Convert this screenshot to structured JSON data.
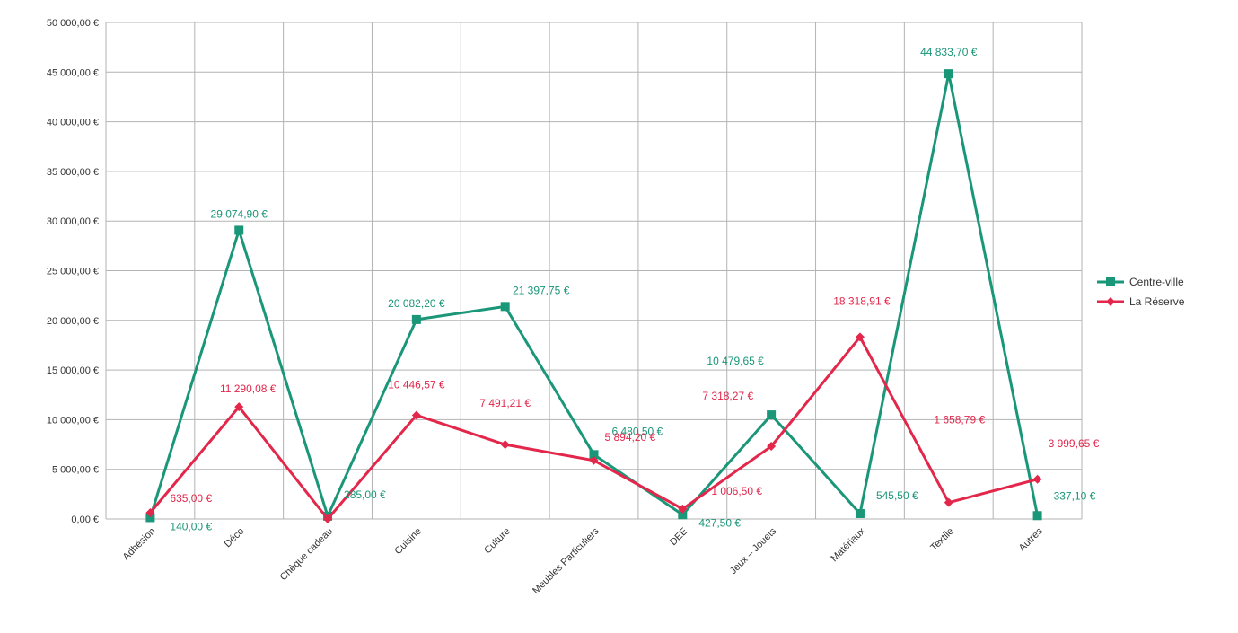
{
  "chart_data": {
    "type": "line",
    "title": "",
    "xlabel": "",
    "ylabel": "",
    "ylim": [
      0,
      50000
    ],
    "y_ticks": [
      "0,00 €",
      "5 000,00 €",
      "10 000,00 €",
      "15 000,00 €",
      "20 000,00 €",
      "25 000,00 €",
      "30 000,00 €",
      "35 000,00 €",
      "40 000,00 €",
      "45 000,00 €",
      "50 000,00 €"
    ],
    "grid": true,
    "legend": "right",
    "categories": [
      "Adhésion",
      "Déco",
      "Chèque cadeau",
      "Cuisine",
      "Culture",
      "Meubles Particuliers",
      "DEE",
      "Jeux – Jouets",
      "Matériaux",
      "Textile",
      "Autres"
    ],
    "series": [
      {
        "name": "Centre-ville",
        "color": "#1a9678",
        "marker": "square",
        "values": [
          140.0,
          29074.9,
          285.0,
          20082.2,
          21397.75,
          6480.5,
          427.5,
          10479.65,
          545.5,
          44833.7,
          337.1
        ],
        "labels": [
          "140,00 €",
          "29 074,90 €",
          "285,00 €",
          "20 082,20 €",
          "21 397,75 €",
          "6 480,50 €",
          "427,50 €",
          "10 479,65 €",
          "545,50 €",
          "44 833,70 €",
          "337,10 €"
        ]
      },
      {
        "name": "La Réserve",
        "color": "#e3274b",
        "marker": "diamond",
        "values": [
          635.0,
          11290.08,
          0,
          10446.57,
          7491.21,
          5894.2,
          1006.5,
          7318.27,
          18318.91,
          1658.79,
          3999.65
        ],
        "labels": [
          "635,00 €",
          "11 290,08 €",
          "",
          "10 446,57 €",
          "7 491,21 €",
          "5 894,20 €",
          "1 006,50 €",
          "7 318,27 €",
          "18 318,91 €",
          "1 658,79 €",
          "3 999,65 €"
        ]
      }
    ]
  }
}
